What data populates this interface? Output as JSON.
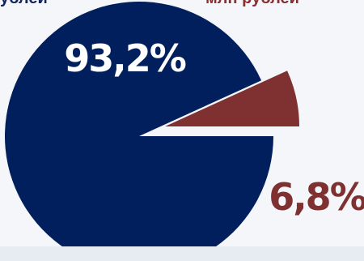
{
  "chart_data": {
    "type": "pie",
    "exploded": "second slice",
    "series_labels": [
      "... рублей",
      "млн рублей"
    ],
    "slices": [
      {
        "value": 93.2,
        "label": "93,2%",
        "color": "#001f5c",
        "label_color": "#ffffff"
      },
      {
        "value": 6.8,
        "label": "6,8%",
        "color": "#7f3131",
        "label_color": "#7f3131"
      }
    ]
  },
  "top_labels": {
    "left": "рублей",
    "right": "млн рублей"
  }
}
